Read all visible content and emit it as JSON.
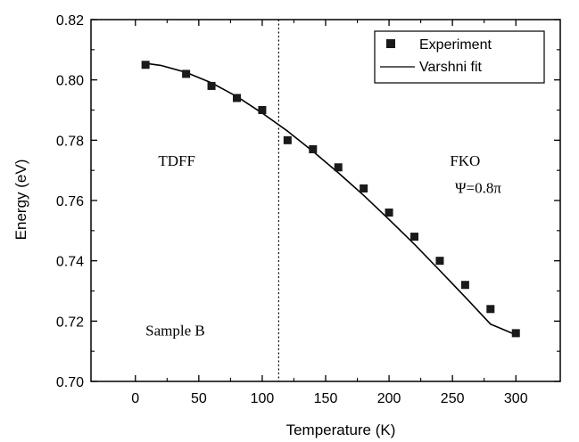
{
  "chart_data": {
    "type": "scatter",
    "xlabel": "Temperature (K)",
    "ylabel": "Energy (eV)",
    "xlim": [
      -35,
      335
    ],
    "ylim": [
      0.7,
      0.82
    ],
    "x_ticks": [
      0,
      50,
      100,
      150,
      200,
      250,
      300
    ],
    "y_ticks": [
      0.7,
      0.72,
      0.74,
      0.76,
      0.78,
      0.8,
      0.82
    ],
    "x_tick_labels": [
      "0",
      "50",
      "100",
      "150",
      "200",
      "250",
      "300"
    ],
    "y_tick_labels": [
      "0.70",
      "0.72",
      "0.74",
      "0.76",
      "0.78",
      "0.80",
      "0.82"
    ],
    "grid": false,
    "legend_position": "top-right",
    "series": [
      {
        "name": "Experiment",
        "marker": "square",
        "x": [
          8,
          40,
          60,
          80,
          100,
          120,
          140,
          160,
          180,
          200,
          220,
          240,
          260,
          280,
          300
        ],
        "y": [
          0.805,
          0.802,
          0.798,
          0.794,
          0.79,
          0.78,
          0.777,
          0.771,
          0.764,
          0.756,
          0.748,
          0.74,
          0.732,
          0.724,
          0.716
        ]
      },
      {
        "name": "Varshni fit",
        "style": "line",
        "x": [
          8,
          20,
          40,
          60,
          80,
          100,
          120,
          140,
          160,
          180,
          200,
          220,
          240,
          260,
          280,
          300
        ],
        "y": [
          0.8055,
          0.8048,
          0.8025,
          0.799,
          0.7945,
          0.789,
          0.783,
          0.7763,
          0.7692,
          0.7617,
          0.7537,
          0.7455,
          0.7368,
          0.728,
          0.719,
          0.7155
        ]
      }
    ],
    "vertical_line": {
      "x": 113,
      "style": "dotted"
    },
    "annotations": [
      {
        "text": "TDFF",
        "x": 18,
        "y": 0.7715
      },
      {
        "text": "FKO",
        "x": 248,
        "y": 0.7715
      },
      {
        "text": "Ψ=0.8π",
        "x": 252,
        "y": 0.7625
      },
      {
        "text": "Sample B",
        "x": 8,
        "y": 0.7152
      }
    ],
    "colors": {
      "marker": "#1a1a1a",
      "line": "#000000",
      "axis": "#000000"
    }
  }
}
